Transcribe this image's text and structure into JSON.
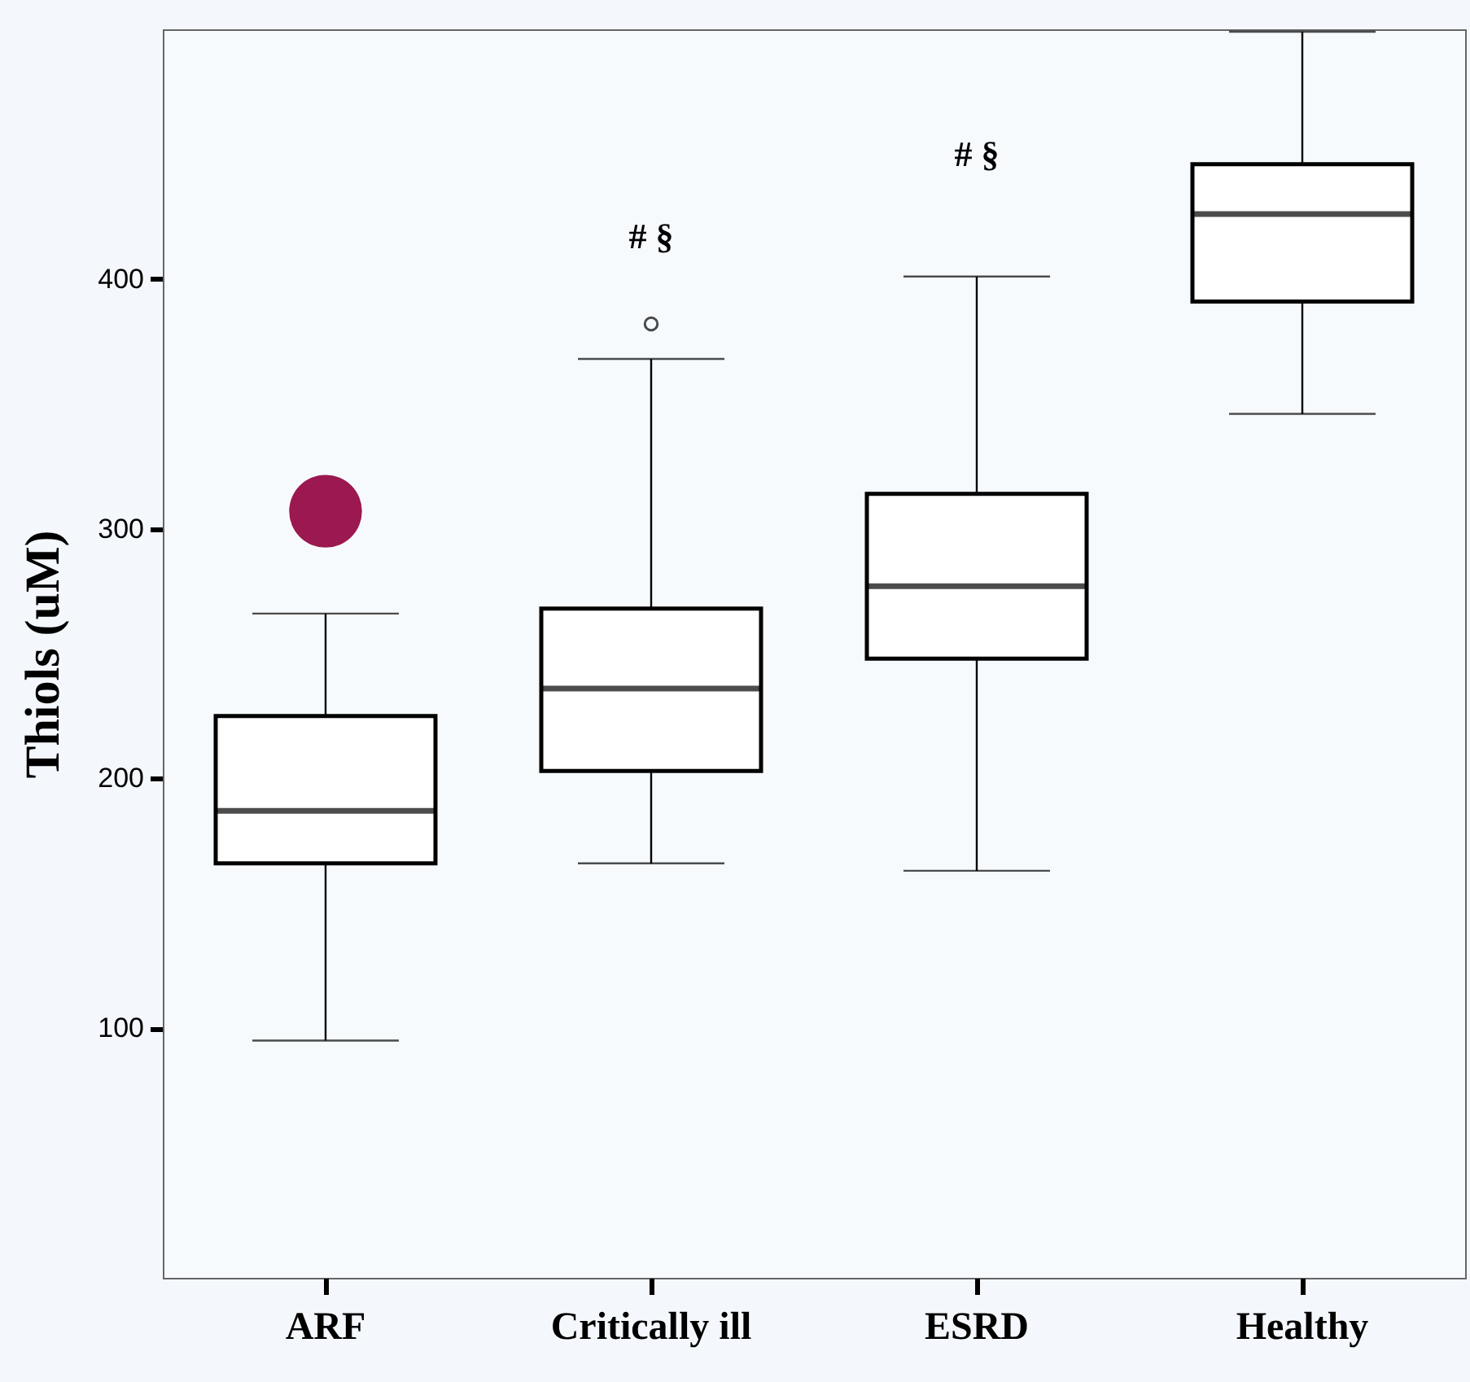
{
  "chart_data": {
    "type": "box",
    "ylabel": "Thiols (uM)",
    "categories": [
      "ARF",
      "Critically ill",
      "ESRD",
      "Healthy"
    ],
    "series": [
      {
        "type": "box",
        "color": "#000000",
        "boxes": [
          {
            "low": 95,
            "q1": 166,
            "median": 187,
            "q3": 225,
            "high": 266
          },
          {
            "low": 166,
            "q1": 203,
            "median": 236,
            "q3": 268,
            "high": 368,
            "outliers": [
              382
            ]
          },
          {
            "low": 163,
            "q1": 248,
            "median": 277,
            "q3": 314,
            "high": 401
          },
          {
            "low": 346,
            "q1": 391,
            "median": 426,
            "q3": 446,
            "high": 499
          }
        ]
      },
      {
        "type": "scatter",
        "color": "#9b1850",
        "marker": "circle",
        "x": [
          "ARF"
        ],
        "values": [
          307
        ]
      }
    ],
    "annotations": [
      {
        "text": "# §",
        "x": "Critically ill",
        "y": 368
      },
      {
        "text": "# §",
        "x": "ESRD",
        "y": 401
      }
    ],
    "ylim": [
      0,
      500
    ],
    "yticks": [
      100,
      200,
      300,
      400
    ],
    "grid": false
  }
}
